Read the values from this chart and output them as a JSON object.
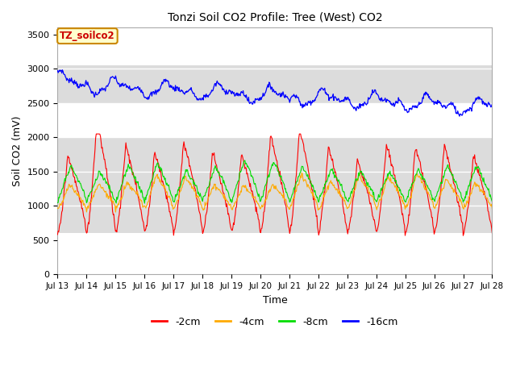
{
  "title": "Tonzi Soil CO2 Profile: Tree (West) CO2",
  "xlabel": "Time",
  "ylabel": "Soil CO2 (mV)",
  "ylim": [
    0,
    3600
  ],
  "yticks": [
    0,
    500,
    1000,
    1500,
    2000,
    2500,
    3000,
    3500
  ],
  "x_tick_days": [
    13,
    14,
    15,
    16,
    17,
    18,
    19,
    20,
    21,
    22,
    23,
    24,
    25,
    26,
    27,
    28
  ],
  "colors": {
    "minus2cm": "#ff0000",
    "minus4cm": "#ffaa00",
    "minus8cm": "#00dd00",
    "minus16cm": "#0000ff"
  },
  "legend_labels": [
    "-2cm",
    "-4cm",
    "-8cm",
    "-16cm"
  ],
  "annotation_text": "TZ_soilco2",
  "annotation_bg": "#ffffcc",
  "annotation_border": "#cc8800",
  "plot_bg": "#ffffff",
  "band_color": "#dcdcdc",
  "band1_y0": 600,
  "band1_y1": 2000,
  "band2_y0": 2500,
  "band2_y1": 3050,
  "n_points": 720
}
